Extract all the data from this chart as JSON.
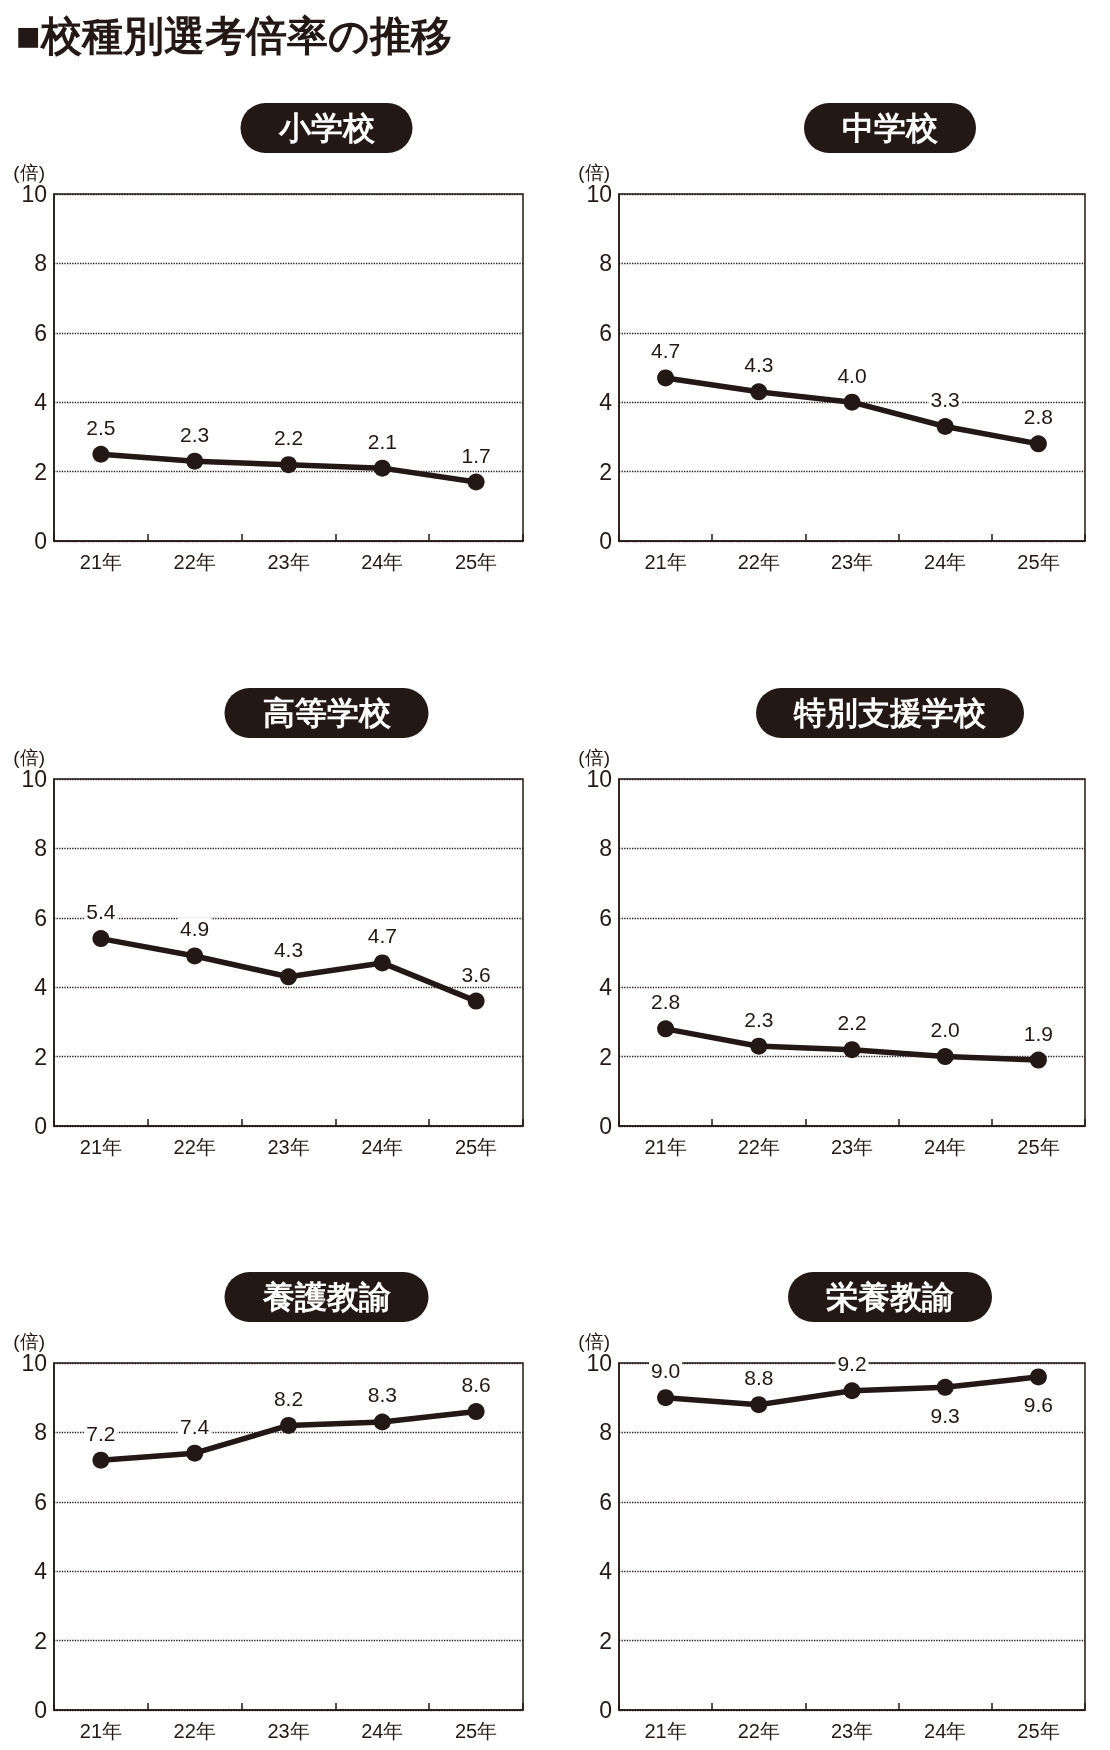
{
  "chart_data": [
    {
      "type": "line",
      "title": "小学校",
      "ylabel": "(倍)",
      "annotations": [
        "■校種別選考倍率の推移"
      ],
      "categories": [
        "21年",
        "22年",
        "23年",
        "24年",
        "25年"
      ],
      "values": [
        2.5,
        2.3,
        2.2,
        2.1,
        1.7
      ],
      "value_labels": [
        "2.5",
        "2.3",
        "2.2",
        "2.1",
        "1.7"
      ],
      "color": "#231815",
      "ylim": [
        0,
        10
      ],
      "yticks": [
        0,
        2,
        4,
        6,
        8,
        10
      ],
      "grid": "y",
      "marker": "circle",
      "line_style": "solid"
    },
    {
      "type": "line",
      "title": "中学校",
      "ylabel": "(倍)",
      "categories": [
        "21年",
        "22年",
        "23年",
        "24年",
        "25年"
      ],
      "values": [
        4.7,
        4.3,
        4.0,
        3.3,
        2.8
      ],
      "value_labels": [
        "4.7",
        "4.3",
        "4.0",
        "3.3",
        "2.8"
      ],
      "color": "#231815",
      "ylim": [
        0,
        10
      ],
      "yticks": [
        0,
        2,
        4,
        6,
        8,
        10
      ],
      "grid": "y",
      "marker": "circle",
      "line_style": "solid"
    },
    {
      "type": "line",
      "title": "高等学校",
      "ylabel": "(倍)",
      "categories": [
        "21年",
        "22年",
        "23年",
        "24年",
        "25年"
      ],
      "values": [
        5.4,
        4.9,
        4.3,
        4.7,
        3.6
      ],
      "value_labels": [
        "5.4",
        "4.9",
        "4.3",
        "4.7",
        "3.6"
      ],
      "color": "#231815",
      "ylim": [
        0,
        10
      ],
      "yticks": [
        0,
        2,
        4,
        6,
        8,
        10
      ],
      "grid": "y",
      "marker": "circle",
      "line_style": "solid"
    },
    {
      "type": "line",
      "title": "特別支援学校",
      "ylabel": "(倍)",
      "categories": [
        "21年",
        "22年",
        "23年",
        "24年",
        "25年"
      ],
      "values": [
        2.8,
        2.3,
        2.2,
        2.0,
        1.9
      ],
      "value_labels": [
        "2.8",
        "2.3",
        "2.2",
        "2.0",
        "1.9"
      ],
      "color": "#231815",
      "ylim": [
        0,
        10
      ],
      "yticks": [
        0,
        2,
        4,
        6,
        8,
        10
      ],
      "grid": "y",
      "marker": "circle",
      "line_style": "solid"
    },
    {
      "type": "line",
      "title": "養護教諭",
      "ylabel": "(倍)",
      "categories": [
        "21年",
        "22年",
        "23年",
        "24年",
        "25年"
      ],
      "values": [
        7.2,
        7.4,
        8.2,
        8.3,
        8.6
      ],
      "value_labels": [
        "7.2",
        "7.4",
        "8.2",
        "8.3",
        "8.6"
      ],
      "color": "#231815",
      "ylim": [
        0,
        10
      ],
      "yticks": [
        0,
        2,
        4,
        6,
        8,
        10
      ],
      "grid": "y",
      "marker": "circle",
      "line_style": "solid"
    },
    {
      "type": "line",
      "title": "栄養教諭",
      "ylabel": "(倍)",
      "categories": [
        "21年",
        "22年",
        "23年",
        "24年",
        "25年"
      ],
      "values": [
        9.0,
        8.8,
        9.2,
        9.3,
        9.6
      ],
      "value_labels": [
        "9.0",
        "8.8",
        "9.2",
        "9.3",
        "9.6"
      ],
      "color": "#231815",
      "ylim": [
        0,
        10
      ],
      "yticks": [
        0,
        2,
        4,
        6,
        8,
        10
      ],
      "grid": "y",
      "marker": "circle",
      "line_style": "solid"
    }
  ]
}
